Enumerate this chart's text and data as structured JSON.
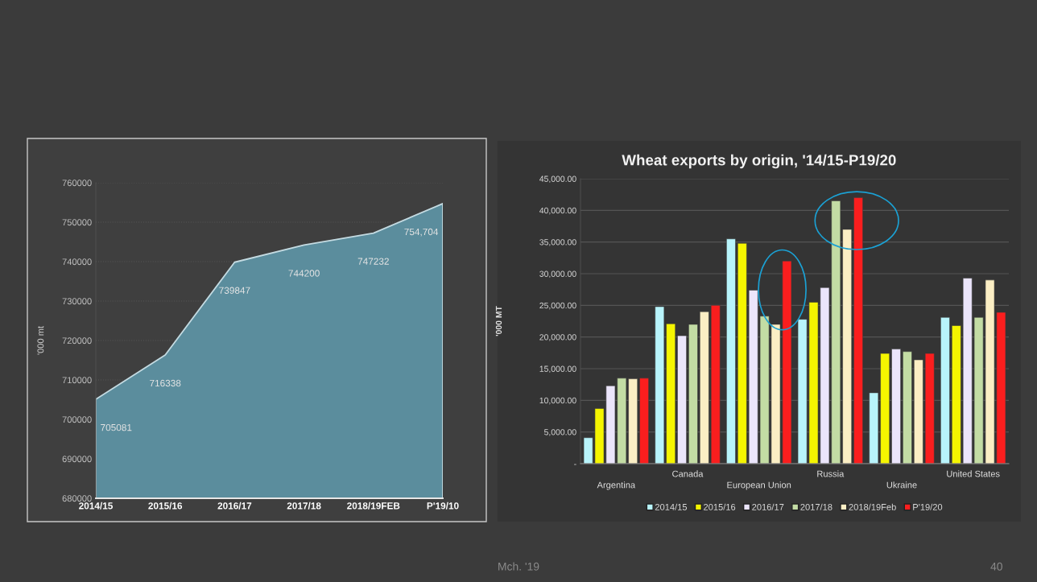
{
  "chart_data": [
    {
      "type": "area",
      "ylabel": "'000 mt",
      "categories": [
        "2014/15",
        "2015/16",
        "2016/17",
        "2017/18",
        "2018/19FEB",
        "P'19/10"
      ],
      "values": [
        705081,
        716338,
        739847,
        744200,
        747232,
        754704
      ],
      "value_labels": [
        "705081",
        "716338",
        "739847",
        "744200",
        "747232",
        "754,704"
      ],
      "color": "#5b8d9d",
      "ylim": [
        680000,
        760000
      ],
      "yticks": [
        680000,
        690000,
        700000,
        710000,
        720000,
        730000,
        740000,
        750000,
        760000
      ],
      "grid": "y"
    },
    {
      "type": "bar",
      "title": "Wheat exports by origin, '14/15-P19/20",
      "ylabel": "'000 MT",
      "categories": [
        "Argentina",
        "Canada",
        "European Union",
        "Russia",
        "Ukraine",
        "United States"
      ],
      "series": [
        {
          "name": "2014/15",
          "color": "#b8f4fb",
          "values": [
            4100,
            24800,
            35500,
            22800,
            11200,
            23100
          ]
        },
        {
          "name": "2015/16",
          "color": "#f5f500",
          "values": [
            8700,
            22100,
            34800,
            25500,
            17400,
            21800
          ]
        },
        {
          "name": "2016/17",
          "color": "#ebe5fb",
          "values": [
            12300,
            20200,
            27400,
            27800,
            18100,
            29300
          ]
        },
        {
          "name": "2017/18",
          "color": "#c3dca4",
          "values": [
            13500,
            22000,
            23300,
            41500,
            17700,
            23100
          ]
        },
        {
          "name": "2018/19Feb",
          "color": "#fbeec4",
          "values": [
            13400,
            24000,
            22000,
            37000,
            16400,
            29000
          ]
        },
        {
          "name": "P'19/20",
          "color": "#fa1e1e",
          "values": [
            13500,
            25000,
            32000,
            42000,
            17400,
            23900
          ]
        }
      ],
      "ylim": [
        0,
        45000
      ],
      "yticks": [
        {
          "value": 0,
          "label": "-"
        },
        {
          "value": 5000,
          "label": "5,000.00"
        },
        {
          "value": 10000,
          "label": "10,000.00"
        },
        {
          "value": 15000,
          "label": "15,000.00"
        },
        {
          "value": 20000,
          "label": "20,000.00"
        },
        {
          "value": 25000,
          "label": "25,000.00"
        },
        {
          "value": 30000,
          "label": "30,000.00"
        },
        {
          "value": 35000,
          "label": "35,000.00"
        },
        {
          "value": 40000,
          "label": "40,000.00"
        },
        {
          "value": 45000,
          "label": "45,000.00"
        }
      ],
      "grid": "y",
      "legend": "bottom",
      "annotations": [
        "Mch. '19",
        "40"
      ]
    }
  ]
}
